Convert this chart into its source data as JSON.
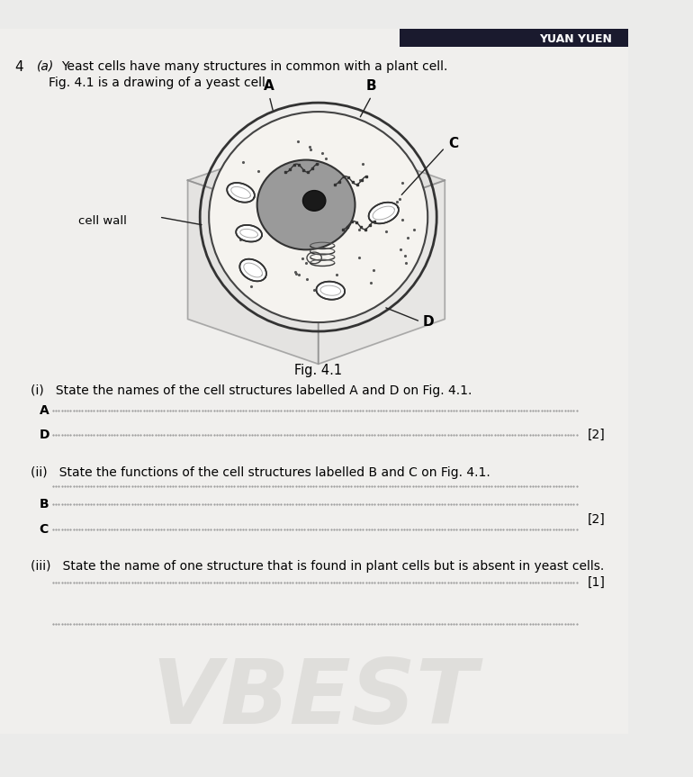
{
  "background_color": "#e8e6e3",
  "page_bg": "#f0eeeb",
  "title_number": "4",
  "part_a_label": "(a)",
  "part_a_text": "Yeast cells have many structures in common with a plant cell.",
  "fig_intro": "Fig. 4.1 is a drawing of a yeast cell.",
  "fig_label": "Fig. 4.1",
  "q_i_text": "(i)   State the names of the cell structures labelled A and D on Fig. 4.1.",
  "q_ii_text": "(ii)   State the functions of the cell structures labelled B and C on Fig. 4.1.",
  "q_iii_text": "(iii)   State the name of one structure that is found in plant cells but is absent in yeast cells.",
  "label_A": "A",
  "label_B": "B",
  "label_C": "C",
  "label_D": "D",
  "cell_wall_label": "cell wall",
  "mark_2a": "[2]",
  "mark_2b": "[2]",
  "mark_1": "[1]",
  "answer_label_A": "A",
  "answer_label_D": "D",
  "answer_label_B": "B",
  "answer_label_C": "C",
  "watermark_text": "VBEST",
  "header_bg": "#1a1a2e",
  "header_text": "YUAN YUEN",
  "line_color": "#888888",
  "dot_line_color": "#aaaaaa"
}
